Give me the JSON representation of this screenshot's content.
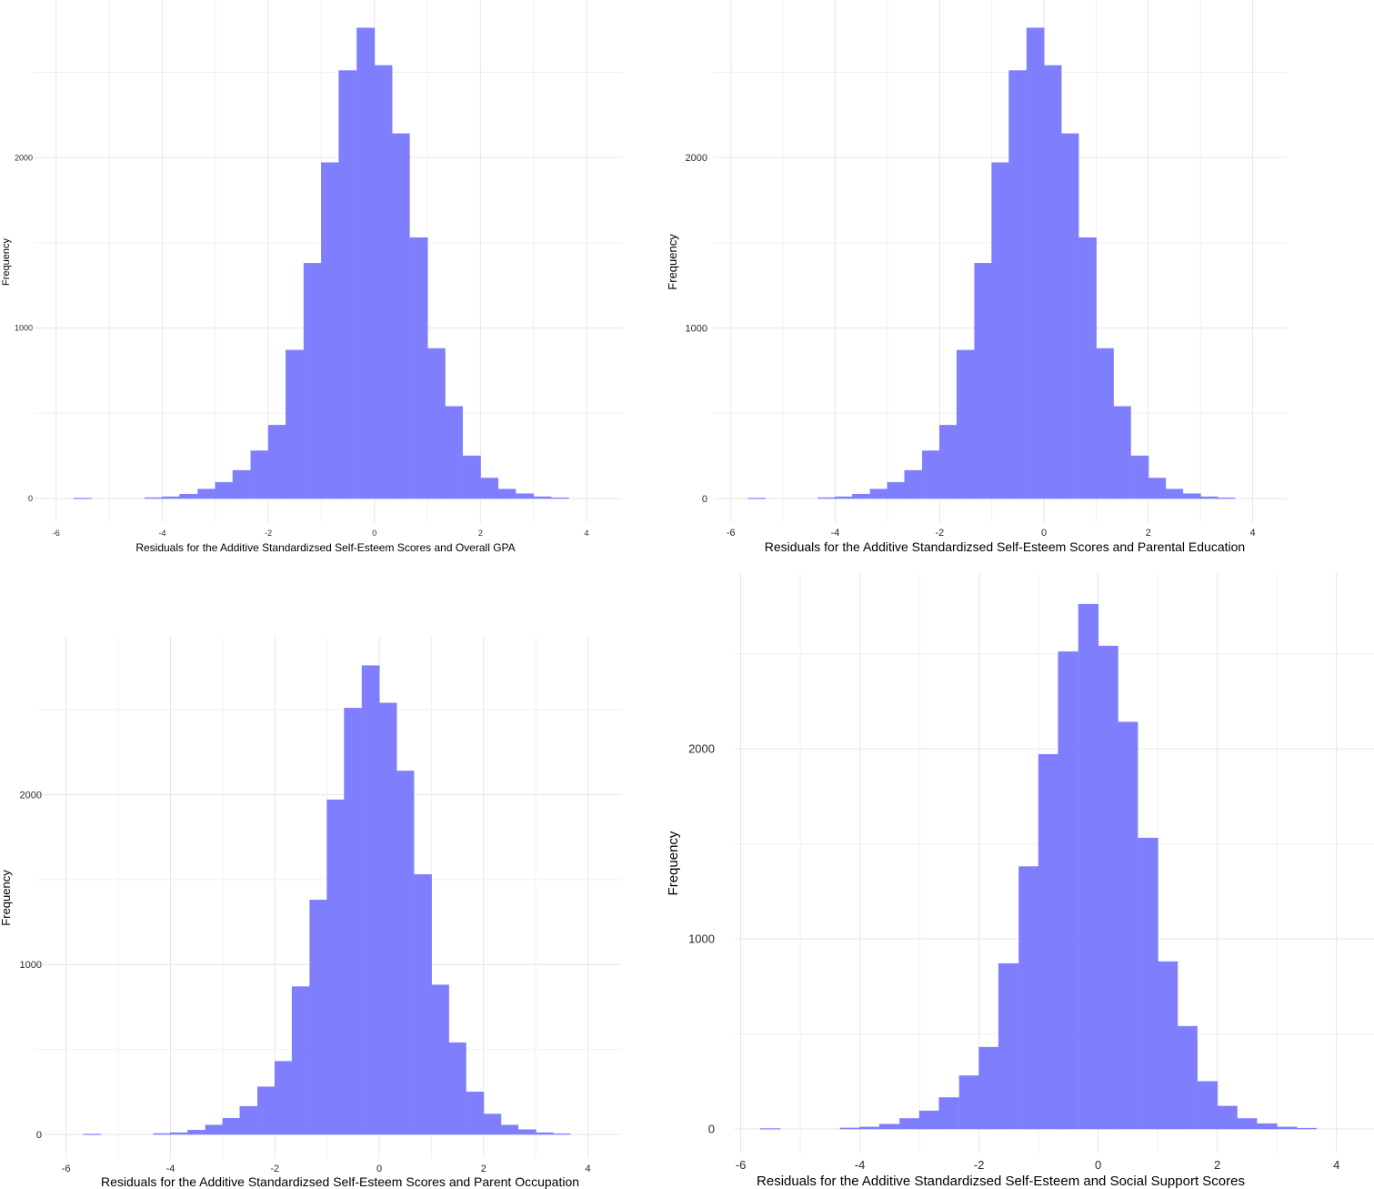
{
  "chart_data": [
    {
      "type": "histogram",
      "xlabel": "Residuals for the Additive Standardizsed Self-Esteem Scores and Overall GPA",
      "ylabel": "Frequency",
      "x_ticks": [
        "-6",
        "-4",
        "-2",
        "0",
        "2",
        "4"
      ],
      "y_ticks": [
        "0",
        "1000",
        "2000"
      ],
      "xlim": [
        -6.1,
        4.6
      ],
      "ylim": [
        0,
        2780
      ],
      "bin_width": 0.333,
      "bins": [
        {
          "x0": -5.67,
          "count": 2
        },
        {
          "x0": -4.33,
          "count": 5
        },
        {
          "x0": -4.0,
          "count": 10
        },
        {
          "x0": -3.67,
          "count": 25
        },
        {
          "x0": -3.33,
          "count": 55
        },
        {
          "x0": -3.0,
          "count": 95
        },
        {
          "x0": -2.67,
          "count": 165
        },
        {
          "x0": -2.33,
          "count": 280
        },
        {
          "x0": -2.0,
          "count": 430
        },
        {
          "x0": -1.67,
          "count": 870
        },
        {
          "x0": -1.33,
          "count": 1380
        },
        {
          "x0": -1.0,
          "count": 1970
        },
        {
          "x0": -0.67,
          "count": 2510
        },
        {
          "x0": -0.33,
          "count": 2760
        },
        {
          "x0": 0.0,
          "count": 2540
        },
        {
          "x0": 0.33,
          "count": 2140
        },
        {
          "x0": 0.67,
          "count": 1530
        },
        {
          "x0": 1.0,
          "count": 880
        },
        {
          "x0": 1.33,
          "count": 540
        },
        {
          "x0": 1.67,
          "count": 250
        },
        {
          "x0": 2.0,
          "count": 120
        },
        {
          "x0": 2.33,
          "count": 55
        },
        {
          "x0": 2.67,
          "count": 28
        },
        {
          "x0": 3.0,
          "count": 10
        },
        {
          "x0": 3.33,
          "count": 4
        }
      ]
    },
    {
      "type": "histogram",
      "xlabel": "Residuals for the Additive Standardizsed Self-Esteem Scores and Parental Education",
      "ylabel": "Frequency",
      "x_ticks": [
        "-6",
        "-4",
        "-2",
        "0",
        "2",
        "4"
      ],
      "y_ticks": [
        "0",
        "1000",
        "2000"
      ],
      "xlim": [
        -6.1,
        4.6
      ],
      "ylim": [
        0,
        2780
      ],
      "bin_width": 0.333,
      "bins": [
        {
          "x0": -5.67,
          "count": 2
        },
        {
          "x0": -4.33,
          "count": 5
        },
        {
          "x0": -4.0,
          "count": 10
        },
        {
          "x0": -3.67,
          "count": 25
        },
        {
          "x0": -3.33,
          "count": 55
        },
        {
          "x0": -3.0,
          "count": 95
        },
        {
          "x0": -2.67,
          "count": 165
        },
        {
          "x0": -2.33,
          "count": 280
        },
        {
          "x0": -2.0,
          "count": 430
        },
        {
          "x0": -1.67,
          "count": 870
        },
        {
          "x0": -1.33,
          "count": 1380
        },
        {
          "x0": -1.0,
          "count": 1970
        },
        {
          "x0": -0.67,
          "count": 2510
        },
        {
          "x0": -0.33,
          "count": 2760
        },
        {
          "x0": 0.0,
          "count": 2540
        },
        {
          "x0": 0.33,
          "count": 2140
        },
        {
          "x0": 0.67,
          "count": 1530
        },
        {
          "x0": 1.0,
          "count": 880
        },
        {
          "x0": 1.33,
          "count": 540
        },
        {
          "x0": 1.67,
          "count": 250
        },
        {
          "x0": 2.0,
          "count": 120
        },
        {
          "x0": 2.33,
          "count": 55
        },
        {
          "x0": 2.67,
          "count": 28
        },
        {
          "x0": 3.0,
          "count": 10
        },
        {
          "x0": 3.33,
          "count": 4
        }
      ]
    },
    {
      "type": "histogram",
      "xlabel": "Residuals for the Additive Standardizsed Self-Esteem Scores and Parent Occupation",
      "ylabel": "Frequency",
      "x_ticks": [
        "-6",
        "-4",
        "-2",
        "0",
        "2",
        "4"
      ],
      "y_ticks": [
        "0",
        "1000",
        "2000"
      ],
      "xlim": [
        -6.1,
        4.6
      ],
      "ylim": [
        0,
        2780
      ],
      "bin_width": 0.333,
      "bins": [
        {
          "x0": -5.67,
          "count": 2
        },
        {
          "x0": -4.33,
          "count": 5
        },
        {
          "x0": -4.0,
          "count": 10
        },
        {
          "x0": -3.67,
          "count": 25
        },
        {
          "x0": -3.33,
          "count": 55
        },
        {
          "x0": -3.0,
          "count": 95
        },
        {
          "x0": -2.67,
          "count": 165
        },
        {
          "x0": -2.33,
          "count": 280
        },
        {
          "x0": -2.0,
          "count": 430
        },
        {
          "x0": -1.67,
          "count": 870
        },
        {
          "x0": -1.33,
          "count": 1380
        },
        {
          "x0": -1.0,
          "count": 1970
        },
        {
          "x0": -0.67,
          "count": 2510
        },
        {
          "x0": -0.33,
          "count": 2760
        },
        {
          "x0": 0.0,
          "count": 2540
        },
        {
          "x0": 0.33,
          "count": 2140
        },
        {
          "x0": 0.67,
          "count": 1530
        },
        {
          "x0": 1.0,
          "count": 880
        },
        {
          "x0": 1.33,
          "count": 540
        },
        {
          "x0": 1.67,
          "count": 250
        },
        {
          "x0": 2.0,
          "count": 120
        },
        {
          "x0": 2.33,
          "count": 55
        },
        {
          "x0": 2.67,
          "count": 28
        },
        {
          "x0": 3.0,
          "count": 10
        },
        {
          "x0": 3.33,
          "count": 4
        }
      ]
    },
    {
      "type": "histogram",
      "xlabel": "Residuals for the Additive Standardizsed Self-Esteem and Social Support Scores",
      "ylabel": "Frequency",
      "x_ticks": [
        "-6",
        "-4",
        "-2",
        "0",
        "2",
        "4"
      ],
      "y_ticks": [
        "0",
        "1000",
        "2000"
      ],
      "xlim": [
        -6.1,
        4.6
      ],
      "ylim": [
        0,
        2780
      ],
      "bin_width": 0.333,
      "bins": [
        {
          "x0": -5.67,
          "count": 2
        },
        {
          "x0": -4.33,
          "count": 5
        },
        {
          "x0": -4.0,
          "count": 10
        },
        {
          "x0": -3.67,
          "count": 25
        },
        {
          "x0": -3.33,
          "count": 55
        },
        {
          "x0": -3.0,
          "count": 95
        },
        {
          "x0": -2.67,
          "count": 165
        },
        {
          "x0": -2.33,
          "count": 280
        },
        {
          "x0": -2.0,
          "count": 430
        },
        {
          "x0": -1.67,
          "count": 870
        },
        {
          "x0": -1.33,
          "count": 1380
        },
        {
          "x0": -1.0,
          "count": 1970
        },
        {
          "x0": -0.67,
          "count": 2510
        },
        {
          "x0": -0.33,
          "count": 2760
        },
        {
          "x0": 0.0,
          "count": 2540
        },
        {
          "x0": 0.33,
          "count": 2140
        },
        {
          "x0": 0.67,
          "count": 1530
        },
        {
          "x0": 1.0,
          "count": 880
        },
        {
          "x0": 1.33,
          "count": 540
        },
        {
          "x0": 1.67,
          "count": 250
        },
        {
          "x0": 2.0,
          "count": 120
        },
        {
          "x0": 2.33,
          "count": 55
        },
        {
          "x0": 2.67,
          "count": 28
        },
        {
          "x0": 3.0,
          "count": 10
        },
        {
          "x0": 3.33,
          "count": 4
        }
      ]
    }
  ]
}
